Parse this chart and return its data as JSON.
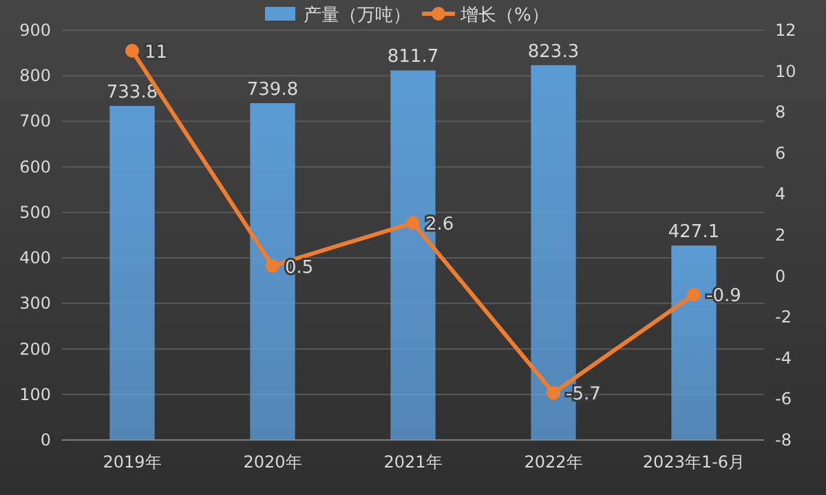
{
  "chart_data": {
    "type": "bar",
    "categories": [
      "2019年",
      "2020年",
      "2021年",
      "2022年",
      "2023年1-6月"
    ],
    "series": [
      {
        "name": "产量（万吨）",
        "color": "#5b9bd5",
        "values": [
          733.8,
          739.8,
          811.7,
          823.3,
          427.1
        ]
      },
      {
        "name": "增长（%）",
        "type": "line",
        "axis": "y2",
        "color": "#ed7d31",
        "values": [
          11,
          0.5,
          2.6,
          -5.7,
          -0.9
        ]
      }
    ],
    "ylim": [
      0,
      900
    ],
    "yticks": [
      0,
      100,
      200,
      300,
      400,
      500,
      600,
      700,
      800,
      900
    ],
    "y2lim": [
      -8,
      12
    ],
    "y2ticks": [
      -8,
      -6,
      -4,
      -2,
      0,
      2,
      4,
      6,
      8,
      10,
      12
    ],
    "grid": "y",
    "legend": "top",
    "marker": "circle",
    "data_labels": true
  }
}
